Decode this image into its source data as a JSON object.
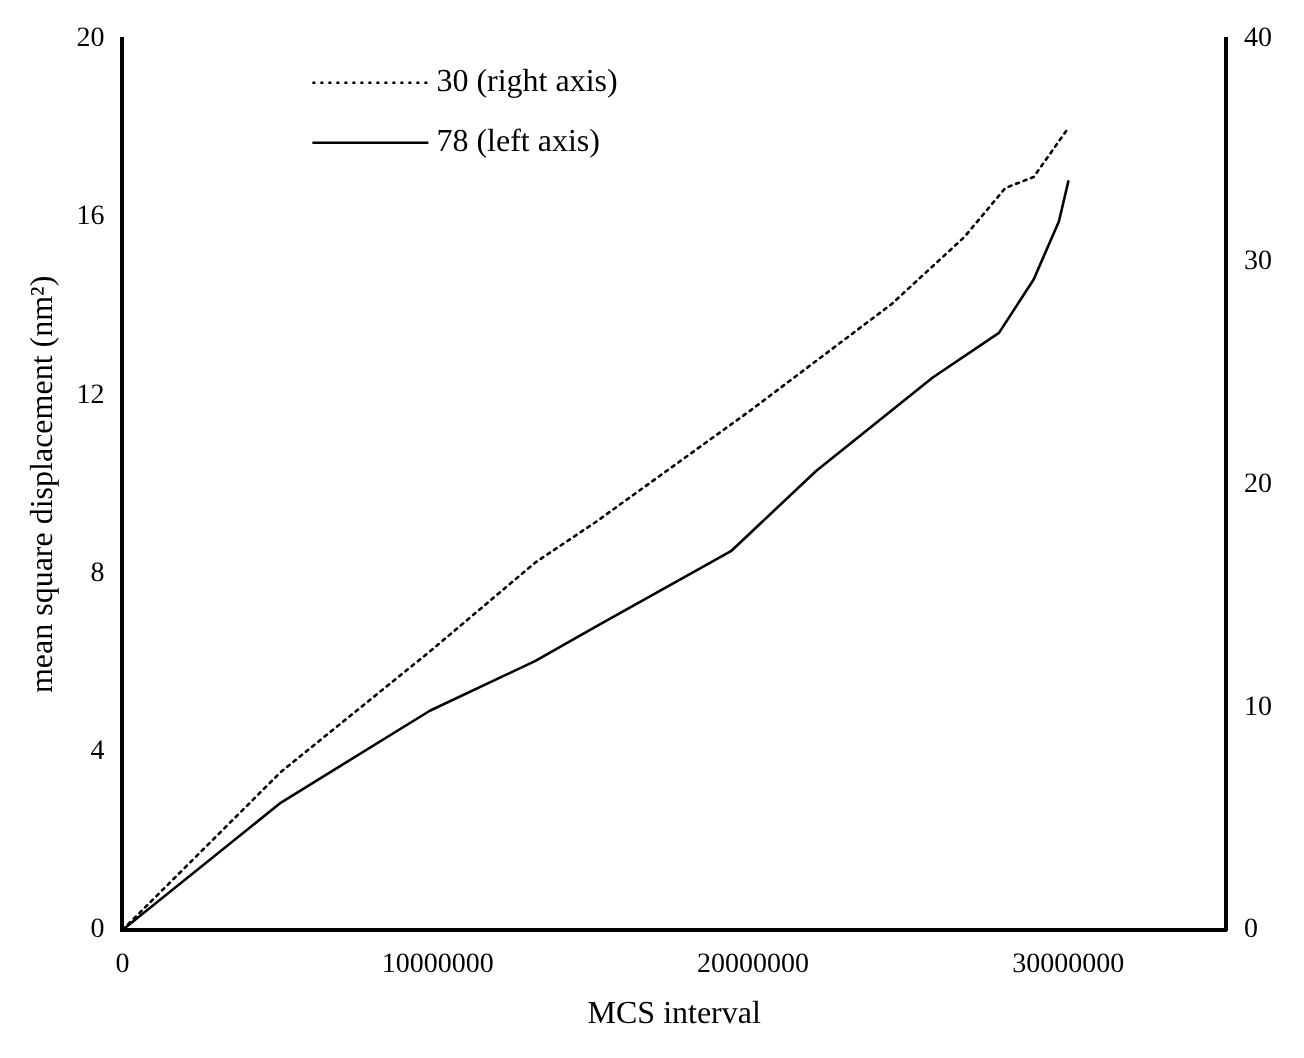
{
  "chart_data": {
    "type": "line",
    "xlabel": "MCS interval",
    "ylabel": "mean square displacement (nm²)",
    "xlim": [
      0,
      35000000
    ],
    "xticks": [
      0,
      10000000,
      20000000,
      30000000
    ],
    "ylim": [
      0,
      20
    ],
    "yticks": [
      0,
      4,
      8,
      12,
      16,
      20
    ],
    "y2lim": [
      0,
      40
    ],
    "y2ticks": [
      0,
      10,
      20,
      30,
      40
    ],
    "legend": "top left",
    "grid": false,
    "marker": "none",
    "series": [
      {
        "name": "30 (right axis)",
        "color": "#000000",
        "axis": "y2",
        "line_style": "dotted",
        "x": [
          0,
          5030000,
          9750000,
          13100000,
          15000000,
          19900000,
          24400000,
          26700000,
          28000000,
          28900000,
          29900000,
          30000000
        ],
        "values": [
          0,
          7.1,
          12.5,
          16.5,
          18.3,
          23.3,
          28.1,
          31.1,
          33.3,
          33.8,
          35.8,
          36.0
        ]
      },
      {
        "name": "78 (left axis)",
        "color": "#000000",
        "axis": "y",
        "line_style": "solid",
        "x": [
          0,
          5030000,
          9750000,
          13100000,
          15000000,
          19300000,
          22000000,
          25700000,
          27800000,
          28900000,
          29700000,
          30000000
        ],
        "values": [
          0,
          2.86,
          4.92,
          6.04,
          6.8,
          8.5,
          10.3,
          12.4,
          13.4,
          14.6,
          15.9,
          16.8
        ]
      }
    ]
  }
}
